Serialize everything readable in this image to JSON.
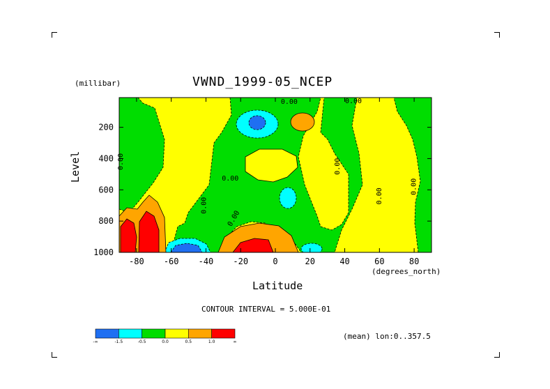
{
  "chart_data": {
    "type": "heatmap",
    "title": "VWND_1999-05_NCEP",
    "xlabel": "Latitude",
    "ylabel": "Level",
    "x_units": "(degrees_north)",
    "y_units": "(millibar)",
    "xlim": [
      -90,
      90
    ],
    "ylim": [
      1000,
      10
    ],
    "y_inverted": true,
    "x_ticks": [
      "-80",
      "-60",
      "-40",
      "-20",
      "0",
      "20",
      "40",
      "60",
      "80"
    ],
    "x_tick_values": [
      -80,
      -60,
      -40,
      -20,
      0,
      20,
      40,
      60,
      80
    ],
    "y_ticks": [
      "200",
      "400",
      "600",
      "800",
      "1000"
    ],
    "y_tick_values": [
      200,
      400,
      600,
      800,
      1000
    ],
    "contour_interval_text": "CONTOUR INTERVAL = 5.000E-01",
    "subtitle_right": "(mean) lon:0..357.5",
    "contour_labels": [
      {
        "text": "0.00",
        "lat": 8,
        "level": 50
      },
      {
        "text": "0.00",
        "lat": 45,
        "level": 10
      },
      {
        "text": "0.00",
        "lat": -88,
        "level": 420
      },
      {
        "text": "0.00",
        "lat": -26,
        "level": 540
      },
      {
        "text": "0.00",
        "lat": -40,
        "level": 700
      },
      {
        "text": "0.00",
        "lat": -23,
        "level": 790
      },
      {
        "text": "0.00",
        "lat": 37,
        "level": 450
      },
      {
        "text": "0.00",
        "lat": 61,
        "level": 640
      },
      {
        "text": "0.00",
        "lat": 81,
        "level": 580
      }
    ],
    "levels": [
      {
        "range": [
          -9999,
          -1.5
        ],
        "color": "#1f6ff2"
      },
      {
        "range": [
          -1.5,
          -0.5
        ],
        "color": "#00ffff"
      },
      {
        "range": [
          -0.5,
          0.0
        ],
        "color": "#00dd00"
      },
      {
        "range": [
          0.0,
          0.5
        ],
        "color": "#ffff00"
      },
      {
        "range": [
          0.5,
          1.0
        ],
        "color": "#ffa500"
      },
      {
        "range": [
          1.0,
          9999
        ],
        "color": "#ff0000"
      }
    ],
    "colorbar_labels": [
      "-∞",
      "-1.5",
      "-0.5",
      "0.0",
      "0.5",
      "1.0",
      "∞"
    ],
    "features": [
      {
        "name": "background",
        "value": 0.25
      },
      {
        "name": "green-left-column",
        "value": -0.25
      },
      {
        "name": "green-central-band",
        "value": -0.25
      },
      {
        "name": "green-right-band",
        "value": -0.25
      },
      {
        "name": "cyan-upper-blob",
        "value": -1.0
      },
      {
        "name": "blue-core-upper",
        "value": -2.0
      },
      {
        "name": "orange-blob-upper",
        "value": 0.75
      },
      {
        "name": "yellow-center-island",
        "value": 0.25
      },
      {
        "name": "cyan-mid-small",
        "value": -1.0
      },
      {
        "name": "cyan-surface-right",
        "value": -1.0
      },
      {
        "name": "orange-surface-center",
        "value": 0.75
      },
      {
        "name": "red-surface-center",
        "value": 1.5
      },
      {
        "name": "cyan-surface-left",
        "value": -1.0
      },
      {
        "name": "blue-surface-left",
        "value": -2.0
      },
      {
        "name": "orange-antarctic",
        "value": 0.75
      },
      {
        "name": "red-antarctic-1",
        "value": 1.5
      },
      {
        "name": "red-antarctic-2",
        "value": 1.5
      }
    ]
  }
}
